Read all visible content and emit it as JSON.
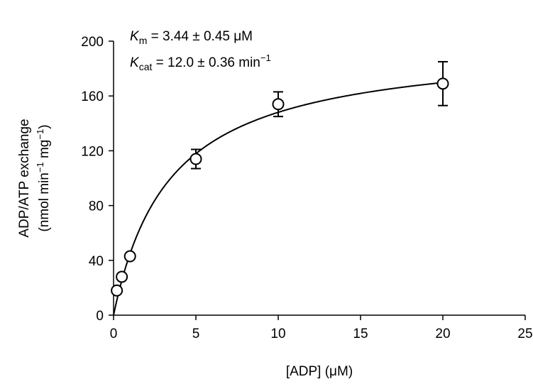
{
  "chart_data": {
    "type": "scatter",
    "title": "",
    "xlabel": "[ADP] (μM)",
    "ylabel": {
      "line1": "ADP/ATP exchange",
      "line2_prefix": "(nmol min",
      "line2_exp1": "−1",
      "line2_mid": " mg",
      "line2_exp2": "−1",
      "line2_suffix": ")"
    },
    "xlim": [
      0,
      25
    ],
    "ylim": [
      0,
      200
    ],
    "xticks": [
      0,
      5,
      10,
      15,
      20,
      25
    ],
    "yticks": [
      0,
      40,
      80,
      120,
      160,
      200
    ],
    "grid": false,
    "series": [
      {
        "marker": "open-circle",
        "points": [
          {
            "x": 0.2,
            "y": 18,
            "err": 0
          },
          {
            "x": 0.5,
            "y": 28,
            "err": 0
          },
          {
            "x": 1.0,
            "y": 43,
            "err": 0
          },
          {
            "x": 5.0,
            "y": 114,
            "err": 7
          },
          {
            "x": 10.0,
            "y": 154,
            "err": 9
          },
          {
            "x": 20.0,
            "y": 169,
            "err": 16
          }
        ]
      }
    ],
    "fit": {
      "model": "michaelis-menten",
      "vmax": 199,
      "km": 3.44
    },
    "annotations": [
      {
        "symbol": "K",
        "sub": "m",
        "text": " = 3.44 ± 0.45 μM"
      },
      {
        "symbol": "K",
        "sub": "cat",
        "text": " = 12.0 ± 0.36 min",
        "sup": "−1"
      }
    ]
  }
}
